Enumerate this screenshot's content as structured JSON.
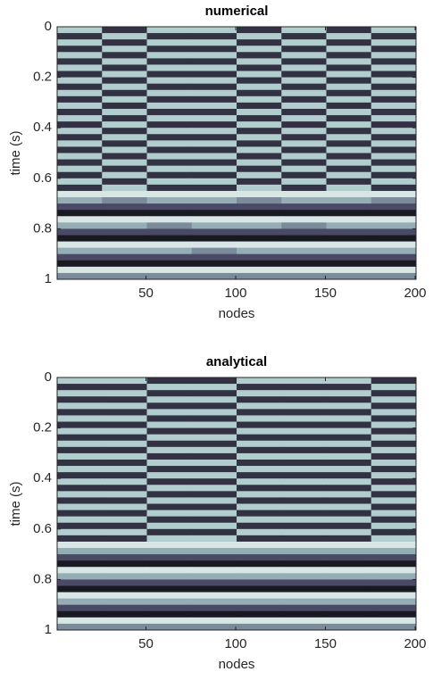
{
  "chart_data": [
    {
      "type": "heatmap",
      "title": "numerical",
      "xlabel": "nodes",
      "ylabel": "time (s)",
      "colormap": "bone",
      "xlim": [
        0.5,
        200.5
      ],
      "ylim": [
        0,
        1
      ],
      "zlim": [
        0,
        9
      ],
      "xticks": [
        50,
        100,
        150,
        200
      ],
      "yticks": [
        0,
        0.2,
        0.4,
        0.6,
        0.8,
        1
      ],
      "x": [
        13,
        38,
        63,
        88,
        113,
        138,
        163,
        188
      ],
      "y": [
        0.0125,
        0.0375,
        0.0625,
        0.0875,
        0.1125,
        0.1375,
        0.1625,
        0.1875,
        0.2125,
        0.2375,
        0.2625,
        0.2875,
        0.3125,
        0.3375,
        0.3625,
        0.3875,
        0.4125,
        0.4375,
        0.4625,
        0.4875,
        0.5125,
        0.5375,
        0.5625,
        0.5875,
        0.6125,
        0.6375,
        0.6625,
        0.6875,
        0.7125,
        0.7375,
        0.7625,
        0.7875,
        0.8125,
        0.8375,
        0.8625,
        0.8875,
        0.9125,
        0.9375,
        0.9625,
        0.9875
      ],
      "z": [
        [
          7,
          2,
          7,
          7,
          2,
          7,
          2,
          7
        ],
        [
          2,
          7,
          2,
          2,
          7,
          2,
          7,
          2
        ],
        [
          7,
          2,
          7,
          7,
          2,
          7,
          2,
          7
        ],
        [
          2,
          7,
          2,
          2,
          7,
          2,
          7,
          2
        ],
        [
          7,
          2,
          7,
          7,
          2,
          7,
          2,
          7
        ],
        [
          2,
          7,
          2,
          2,
          7,
          2,
          7,
          2
        ],
        [
          7,
          2,
          7,
          7,
          2,
          7,
          2,
          7
        ],
        [
          2,
          7,
          2,
          2,
          7,
          2,
          7,
          2
        ],
        [
          7,
          2,
          7,
          7,
          2,
          7,
          2,
          7
        ],
        [
          2,
          7,
          2,
          2,
          7,
          2,
          7,
          2
        ],
        [
          7,
          2,
          7,
          7,
          2,
          7,
          2,
          7
        ],
        [
          2,
          7,
          2,
          2,
          7,
          2,
          7,
          2
        ],
        [
          7,
          2,
          7,
          7,
          2,
          7,
          2,
          7
        ],
        [
          2,
          7,
          2,
          2,
          7,
          2,
          7,
          2
        ],
        [
          7,
          2,
          7,
          7,
          2,
          7,
          2,
          7
        ],
        [
          2,
          7,
          2,
          2,
          7,
          2,
          7,
          2
        ],
        [
          7,
          2,
          7,
          7,
          2,
          7,
          2,
          7
        ],
        [
          2,
          7,
          2,
          2,
          7,
          2,
          7,
          2
        ],
        [
          7,
          2,
          7,
          7,
          2,
          7,
          2,
          7
        ],
        [
          2,
          7,
          2,
          2,
          7,
          2,
          7,
          2
        ],
        [
          7,
          2,
          7,
          7,
          2,
          7,
          2,
          7
        ],
        [
          2,
          7,
          2,
          2,
          7,
          2,
          7,
          2
        ],
        [
          7,
          2,
          7,
          7,
          2,
          7,
          2,
          7
        ],
        [
          2,
          7,
          2,
          2,
          7,
          2,
          7,
          2
        ],
        [
          7,
          2,
          7,
          7,
          2,
          7,
          2,
          7
        ],
        [
          2,
          7,
          2,
          2,
          7,
          2,
          7,
          2
        ],
        [
          8,
          8,
          8,
          8,
          8,
          8,
          8,
          8
        ],
        [
          6,
          5,
          6,
          6,
          5,
          6,
          6,
          5
        ],
        [
          3,
          3,
          3,
          3,
          3,
          3,
          3,
          3
        ],
        [
          1,
          1,
          1,
          1,
          1,
          1,
          1,
          1
        ],
        [
          8,
          8,
          8,
          8,
          8,
          8,
          8,
          8
        ],
        [
          6,
          6,
          5,
          6,
          6,
          5,
          6,
          6
        ],
        [
          3,
          3,
          3,
          3,
          3,
          3,
          3,
          3
        ],
        [
          1,
          1,
          1,
          1,
          1,
          1,
          1,
          1
        ],
        [
          8,
          8,
          8,
          8,
          8,
          8,
          8,
          8
        ],
        [
          6,
          6,
          6,
          5,
          6,
          6,
          6,
          6
        ],
        [
          3,
          3,
          3,
          3,
          3,
          3,
          3,
          3
        ],
        [
          1,
          1,
          1,
          1,
          1,
          1,
          1,
          1
        ],
        [
          8,
          8,
          8,
          8,
          8,
          8,
          8,
          8
        ],
        [
          5,
          5,
          5,
          5,
          5,
          5,
          5,
          5
        ]
      ]
    },
    {
      "type": "heatmap",
      "title": "analytical",
      "xlabel": "nodes",
      "ylabel": "time (s)",
      "colormap": "bone",
      "xlim": [
        0.5,
        200.5
      ],
      "ylim": [
        0,
        1
      ],
      "zlim": [
        0,
        9
      ],
      "xticks": [
        50,
        100,
        150,
        200
      ],
      "yticks": [
        0,
        0.2,
        0.4,
        0.6,
        0.8,
        1
      ],
      "x": [
        13,
        38,
        63,
        88,
        113,
        138,
        163,
        188
      ],
      "y": [
        0.0125,
        0.0375,
        0.0625,
        0.0875,
        0.1125,
        0.1375,
        0.1625,
        0.1875,
        0.2125,
        0.2375,
        0.2625,
        0.2875,
        0.3125,
        0.3375,
        0.3625,
        0.3875,
        0.4125,
        0.4375,
        0.4625,
        0.4875,
        0.5125,
        0.5375,
        0.5625,
        0.5875,
        0.6125,
        0.6375,
        0.6625,
        0.6875,
        0.7125,
        0.7375,
        0.7625,
        0.7875,
        0.8125,
        0.8375,
        0.8625,
        0.8875,
        0.9125,
        0.9375,
        0.9625,
        0.9875
      ],
      "z": [
        [
          7,
          7,
          2,
          2,
          7,
          7,
          7,
          2
        ],
        [
          2,
          2,
          7,
          7,
          2,
          2,
          2,
          7
        ],
        [
          7,
          7,
          2,
          2,
          7,
          7,
          7,
          2
        ],
        [
          2,
          2,
          7,
          7,
          2,
          2,
          2,
          7
        ],
        [
          7,
          7,
          2,
          2,
          7,
          7,
          7,
          2
        ],
        [
          2,
          2,
          7,
          7,
          2,
          2,
          2,
          7
        ],
        [
          7,
          7,
          2,
          2,
          7,
          7,
          7,
          2
        ],
        [
          2,
          2,
          7,
          7,
          2,
          2,
          2,
          7
        ],
        [
          7,
          7,
          2,
          2,
          7,
          7,
          7,
          2
        ],
        [
          2,
          2,
          7,
          7,
          2,
          2,
          2,
          7
        ],
        [
          7,
          7,
          2,
          2,
          7,
          7,
          7,
          2
        ],
        [
          2,
          2,
          7,
          7,
          2,
          2,
          2,
          7
        ],
        [
          7,
          7,
          2,
          2,
          7,
          7,
          7,
          2
        ],
        [
          2,
          2,
          7,
          7,
          2,
          2,
          2,
          7
        ],
        [
          7,
          7,
          2,
          2,
          7,
          7,
          7,
          2
        ],
        [
          2,
          2,
          7,
          7,
          2,
          2,
          2,
          7
        ],
        [
          7,
          7,
          2,
          2,
          7,
          7,
          7,
          2
        ],
        [
          2,
          2,
          7,
          7,
          2,
          2,
          2,
          7
        ],
        [
          7,
          7,
          2,
          2,
          7,
          7,
          7,
          2
        ],
        [
          2,
          2,
          7,
          7,
          2,
          2,
          2,
          7
        ],
        [
          7,
          7,
          2,
          2,
          7,
          7,
          7,
          2
        ],
        [
          2,
          2,
          7,
          7,
          2,
          2,
          2,
          7
        ],
        [
          7,
          7,
          2,
          2,
          7,
          7,
          7,
          2
        ],
        [
          2,
          2,
          7,
          7,
          2,
          2,
          2,
          7
        ],
        [
          7,
          7,
          2,
          2,
          7,
          7,
          7,
          2
        ],
        [
          2,
          2,
          7,
          7,
          2,
          2,
          2,
          7
        ],
        [
          8,
          8,
          8,
          8,
          8,
          8,
          8,
          8
        ],
        [
          6,
          6,
          6,
          6,
          6,
          6,
          6,
          6
        ],
        [
          3,
          3,
          3,
          3,
          3,
          3,
          3,
          3
        ],
        [
          1,
          1,
          1,
          1,
          1,
          1,
          1,
          1
        ],
        [
          8,
          8,
          8,
          8,
          8,
          8,
          8,
          8
        ],
        [
          6,
          6,
          6,
          6,
          6,
          6,
          6,
          6
        ],
        [
          3,
          3,
          3,
          3,
          3,
          3,
          3,
          3
        ],
        [
          1,
          1,
          1,
          1,
          1,
          1,
          1,
          1
        ],
        [
          8,
          8,
          8,
          8,
          8,
          8,
          8,
          8
        ],
        [
          6,
          6,
          6,
          6,
          6,
          6,
          6,
          6
        ],
        [
          3,
          3,
          3,
          3,
          3,
          3,
          3,
          3
        ],
        [
          1,
          1,
          1,
          1,
          1,
          1,
          1,
          1
        ],
        [
          8,
          8,
          8,
          8,
          8,
          8,
          8,
          8
        ],
        [
          5,
          5,
          5,
          5,
          5,
          5,
          5,
          5
        ]
      ]
    }
  ]
}
